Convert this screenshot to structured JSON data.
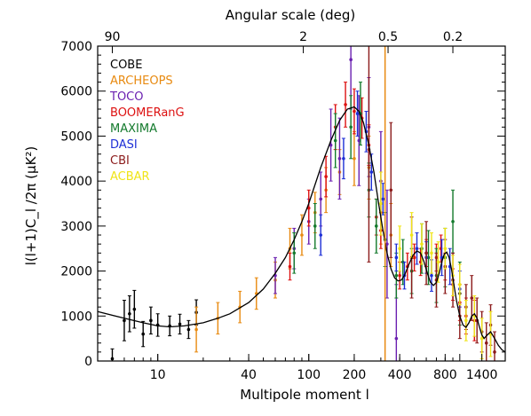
{
  "chart_data": {
    "type": "scatter",
    "xlabel": "Multipole moment l",
    "ylabel": "l(l+1)C_l /2π (μK²)",
    "top_axis_label": "Angular scale (deg)",
    "x_scale": "log",
    "xlim": [
      4,
      2000
    ],
    "ylim": [
      0,
      7000
    ],
    "grid": false,
    "legend_position": "top-left",
    "x_tick_labels": [
      "10",
      "40",
      "100",
      "200",
      "400",
      "800",
      "1400"
    ],
    "x_ticks": [
      10,
      40,
      100,
      200,
      400,
      800,
      1400
    ],
    "y_tick_labels": [
      "0",
      "1000",
      "2000",
      "3000",
      "4000",
      "5000",
      "6000",
      "7000"
    ],
    "y_ticks": [
      0,
      1000,
      2000,
      3000,
      4000,
      5000,
      6000,
      7000
    ],
    "top_tick_labels": [
      "90",
      "2",
      "0.5",
      "0.2"
    ],
    "top_tick_ell": [
      5,
      92,
      335,
      900
    ],
    "vertical_line": {
      "x": 320,
      "color": "#e88a10"
    },
    "model_curve": {
      "name": "",
      "x": [
        4,
        6,
        8,
        10,
        12,
        15,
        20,
        25,
        30,
        40,
        50,
        60,
        70,
        80,
        90,
        100,
        120,
        140,
        160,
        180,
        200,
        215,
        230,
        250,
        270,
        290,
        310,
        330,
        350,
        370,
        390,
        410,
        430,
        460,
        490,
        520,
        550,
        580,
        610,
        640,
        670,
        700,
        730,
        760,
        790,
        820,
        850,
        880,
        910,
        950,
        1000,
        1050,
        1100,
        1150,
        1200,
        1250,
        1300,
        1350,
        1400,
        1450,
        1500,
        1600,
        1700,
        1800,
        1900,
        2000
      ],
      "y": [
        1100,
        950,
        850,
        780,
        760,
        780,
        850,
        950,
        1050,
        1300,
        1600,
        1950,
        2300,
        2700,
        3100,
        3500,
        4300,
        4900,
        5350,
        5600,
        5650,
        5550,
        5300,
        4800,
        4200,
        3500,
        2900,
        2400,
        2050,
        1850,
        1780,
        1800,
        1900,
        2150,
        2350,
        2450,
        2400,
        2200,
        1950,
        1750,
        1680,
        1750,
        1950,
        2200,
        2380,
        2420,
        2300,
        2050,
        1750,
        1350,
        1000,
        800,
        750,
        850,
        1000,
        1050,
        950,
        750,
        580,
        500,
        560,
        650,
        500,
        350,
        250,
        200
      ]
    },
    "series": [
      {
        "name": "COBE",
        "color": "#000000",
        "points": [
          [
            5,
            50,
            220
          ],
          [
            6,
            900,
            450
          ],
          [
            6.5,
            1050,
            400
          ],
          [
            7,
            1150,
            420
          ],
          [
            8,
            600,
            280
          ],
          [
            9,
            900,
            300
          ],
          [
            10,
            800,
            250
          ],
          [
            12,
            780,
            220
          ],
          [
            14,
            820,
            220
          ],
          [
            16,
            700,
            200
          ],
          [
            18,
            1080,
            280
          ]
        ]
      },
      {
        "name": "ARCHEOPS",
        "color": "#e88a10",
        "points": [
          [
            18,
            700,
            500
          ],
          [
            25,
            950,
            350
          ],
          [
            35,
            1200,
            350
          ],
          [
            45,
            1500,
            350
          ],
          [
            60,
            1800,
            400
          ],
          [
            75,
            2500,
            450
          ],
          [
            90,
            2800,
            450
          ],
          [
            110,
            3300,
            450
          ],
          [
            130,
            3800,
            500
          ],
          [
            160,
            4200,
            500
          ],
          [
            200,
            4500,
            600
          ],
          [
            250,
            4300,
            700
          ],
          [
            300,
            3300,
            700
          ],
          [
            350,
            2800,
            700
          ]
        ]
      },
      {
        "name": "TOCO",
        "color": "#6a1fb0",
        "points": [
          [
            60,
            1900,
            400
          ],
          [
            80,
            2500,
            450
          ],
          [
            100,
            3100,
            500
          ],
          [
            120,
            3600,
            600
          ],
          [
            140,
            4800,
            800
          ],
          [
            160,
            4500,
            900
          ],
          [
            190,
            6700,
            1100
          ],
          [
            215,
            4900,
            1000
          ],
          [
            250,
            5200,
            1100
          ],
          [
            300,
            4000,
            1100
          ],
          [
            330,
            2600,
            1200
          ],
          [
            380,
            500,
            1200
          ]
        ]
      },
      {
        "name": "BOOMERanG",
        "color": "#dd1111",
        "points": [
          [
            75,
            2100,
            300
          ],
          [
            100,
            3400,
            400
          ],
          [
            130,
            4100,
            450
          ],
          [
            150,
            5200,
            500
          ],
          [
            175,
            5700,
            500
          ],
          [
            200,
            5550,
            500
          ],
          [
            225,
            5400,
            450
          ],
          [
            250,
            4800,
            450
          ],
          [
            280,
            3200,
            400
          ],
          [
            300,
            2900,
            400
          ],
          [
            400,
            1900,
            300
          ],
          [
            450,
            2100,
            300
          ],
          [
            500,
            2300,
            300
          ],
          [
            550,
            2200,
            300
          ],
          [
            600,
            2400,
            300
          ],
          [
            700,
            2300,
            300
          ],
          [
            750,
            2500,
            300
          ],
          [
            800,
            2100,
            300
          ],
          [
            900,
            1700,
            350
          ],
          [
            1000,
            1300,
            400
          ],
          [
            1100,
            1000,
            400
          ],
          [
            1250,
            900,
            450
          ]
        ]
      },
      {
        "name": "MAXIMA",
        "color": "#137a2c",
        "points": [
          [
            80,
            2400,
            450
          ],
          [
            110,
            3000,
            500
          ],
          [
            150,
            4900,
            600
          ],
          [
            190,
            5200,
            700
          ],
          [
            220,
            5500,
            700
          ],
          [
            250,
            3800,
            600
          ],
          [
            280,
            3000,
            600
          ],
          [
            320,
            2700,
            600
          ],
          [
            380,
            1900,
            500
          ],
          [
            420,
            2200,
            500
          ],
          [
            480,
            2000,
            500
          ],
          [
            560,
            2500,
            550
          ],
          [
            620,
            2300,
            600
          ],
          [
            700,
            1900,
            600
          ],
          [
            800,
            2300,
            650
          ],
          [
            900,
            3100,
            700
          ],
          [
            1000,
            1500,
            700
          ]
        ]
      },
      {
        "name": "DASI",
        "color": "#1e2fd6",
        "points": [
          [
            120,
            2800,
            450
          ],
          [
            170,
            4500,
            450
          ],
          [
            210,
            5500,
            500
          ],
          [
            240,
            5100,
            450
          ],
          [
            260,
            4200,
            400
          ],
          [
            310,
            3600,
            350
          ],
          [
            380,
            2300,
            300
          ],
          [
            430,
            1900,
            300
          ],
          [
            520,
            2500,
            350
          ],
          [
            600,
            2300,
            350
          ],
          [
            650,
            1900,
            350
          ],
          [
            760,
            2300,
            400
          ],
          [
            860,
            2100,
            400
          ],
          [
            1000,
            1600,
            400
          ]
        ]
      },
      {
        "name": "CBI",
        "color": "#8b1a1a",
        "points": [
          [
            250,
            4700,
            2500
          ],
          [
            350,
            3800,
            1500
          ],
          [
            480,
            2300,
            900
          ],
          [
            600,
            2400,
            700
          ],
          [
            700,
            1800,
            600
          ],
          [
            800,
            2100,
            600
          ],
          [
            900,
            1800,
            600
          ],
          [
            1000,
            1000,
            500
          ],
          [
            1100,
            1200,
            500
          ],
          [
            1200,
            1400,
            500
          ],
          [
            1300,
            900,
            500
          ],
          [
            1400,
            650,
            450
          ],
          [
            1500,
            400,
            450
          ],
          [
            1600,
            800,
            450
          ],
          [
            1700,
            200,
            450
          ]
        ]
      },
      {
        "name": "ACBAR",
        "color": "#f0e418",
        "points": [
          [
            300,
            3500,
            700
          ],
          [
            400,
            2500,
            500
          ],
          [
            480,
            2800,
            500
          ],
          [
            560,
            2600,
            450
          ],
          [
            650,
            2400,
            450
          ],
          [
            720,
            2200,
            450
          ],
          [
            800,
            2500,
            450
          ],
          [
            900,
            1900,
            450
          ],
          [
            1000,
            1700,
            450
          ],
          [
            1100,
            900,
            450
          ],
          [
            1250,
            1000,
            450
          ],
          [
            1400,
            500,
            450
          ],
          [
            1600,
            600,
            500
          ]
        ]
      }
    ]
  }
}
